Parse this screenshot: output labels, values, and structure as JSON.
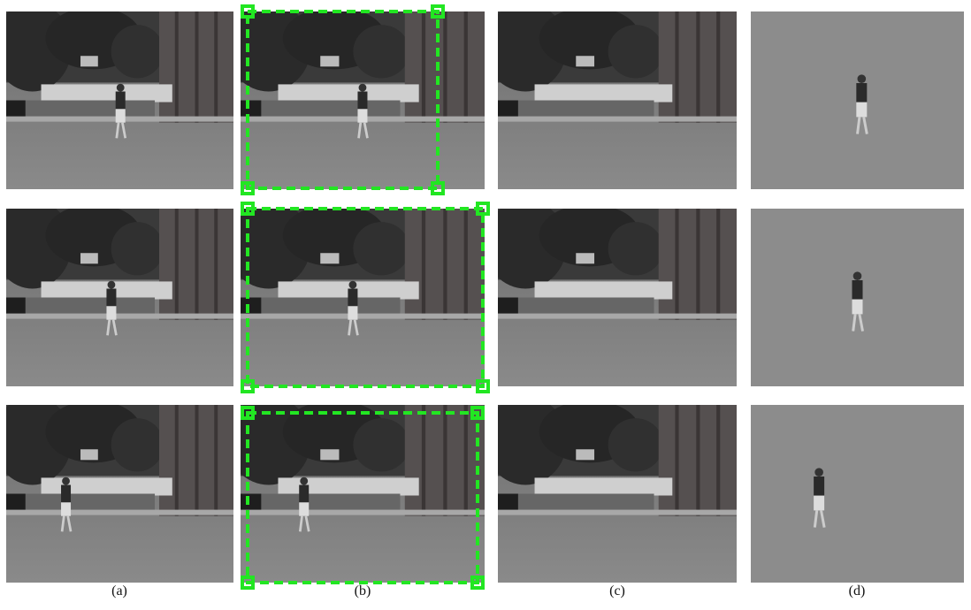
{
  "figure": {
    "labels": [
      "(a)",
      "(b)",
      "(c)",
      "(d)"
    ]
  }
}
